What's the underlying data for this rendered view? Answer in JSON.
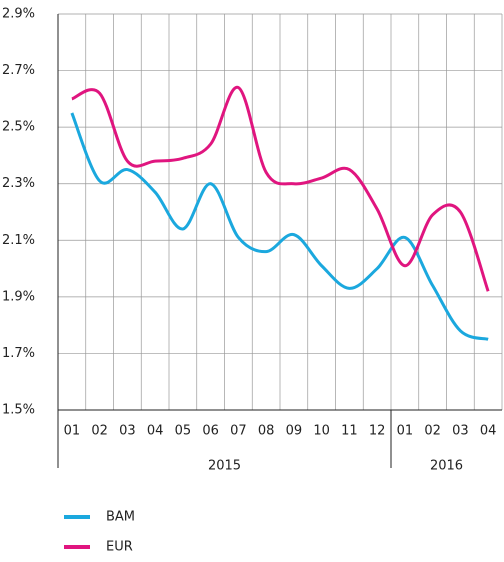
{
  "chart_data": {
    "type": "line",
    "categories": [
      "01",
      "02",
      "03",
      "04",
      "05",
      "06",
      "07",
      "08",
      "09",
      "10",
      "11",
      "12",
      "01",
      "02",
      "03",
      "04"
    ],
    "x_groups": [
      "2015",
      "2016"
    ],
    "series": [
      {
        "name": "BAM",
        "color": "#1ba8de",
        "values": [
          2.55,
          2.31,
          2.35,
          2.27,
          2.14,
          2.3,
          2.11,
          2.06,
          2.12,
          2.01,
          1.93,
          2.0,
          2.11,
          1.94,
          1.78,
          1.75
        ]
      },
      {
        "name": "EUR",
        "color": "#e0157f",
        "values": [
          2.6,
          2.62,
          2.38,
          2.38,
          2.39,
          2.44,
          2.64,
          2.34,
          2.3,
          2.32,
          2.35,
          2.21,
          2.01,
          2.19,
          2.2,
          1.92
        ]
      }
    ],
    "ylim": [
      1.5,
      2.9
    ],
    "yticks": [
      {
        "value": 1.5,
        "label": "1.5%"
      },
      {
        "value": 1.7,
        "label": "1.7%"
      },
      {
        "value": 1.9,
        "label": "1.9%"
      },
      {
        "value": 2.1,
        "label": "2.1%"
      },
      {
        "value": 2.3,
        "label": "2.3%"
      },
      {
        "value": 2.5,
        "label": "2.5%"
      },
      {
        "value": 2.7,
        "label": "2.7%"
      },
      {
        "value": 2.9,
        "label": "2.9%"
      }
    ],
    "grid": true
  }
}
